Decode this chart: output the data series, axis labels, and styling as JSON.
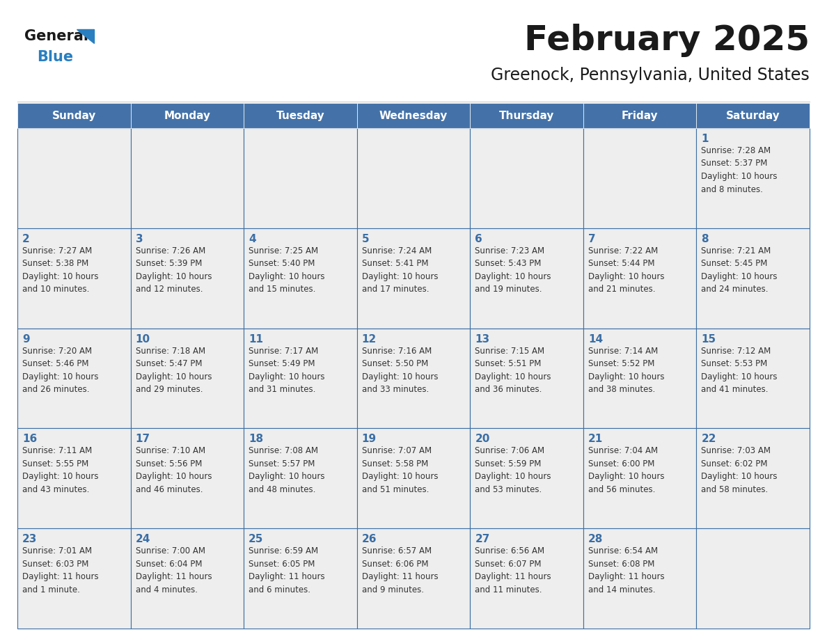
{
  "title": "February 2025",
  "subtitle": "Greenock, Pennsylvania, United States",
  "days_of_week": [
    "Sunday",
    "Monday",
    "Tuesday",
    "Wednesday",
    "Thursday",
    "Friday",
    "Saturday"
  ],
  "header_bg": "#4472a8",
  "header_text": "#ffffff",
  "cell_bg": "#eeeeee",
  "border_color": "#3a6ea5",
  "day_number_color": "#3a6ea5",
  "info_text_color": "#333333",
  "title_color": "#1a1a1a",
  "subtitle_color": "#1a1a1a",
  "logo_general_color": "#1a1a1a",
  "logo_blue_color": "#2a7fc0",
  "weeks": [
    [
      {
        "day": "",
        "info": ""
      },
      {
        "day": "",
        "info": ""
      },
      {
        "day": "",
        "info": ""
      },
      {
        "day": "",
        "info": ""
      },
      {
        "day": "",
        "info": ""
      },
      {
        "day": "",
        "info": ""
      },
      {
        "day": "1",
        "info": "Sunrise: 7:28 AM\nSunset: 5:37 PM\nDaylight: 10 hours\nand 8 minutes."
      }
    ],
    [
      {
        "day": "2",
        "info": "Sunrise: 7:27 AM\nSunset: 5:38 PM\nDaylight: 10 hours\nand 10 minutes."
      },
      {
        "day": "3",
        "info": "Sunrise: 7:26 AM\nSunset: 5:39 PM\nDaylight: 10 hours\nand 12 minutes."
      },
      {
        "day": "4",
        "info": "Sunrise: 7:25 AM\nSunset: 5:40 PM\nDaylight: 10 hours\nand 15 minutes."
      },
      {
        "day": "5",
        "info": "Sunrise: 7:24 AM\nSunset: 5:41 PM\nDaylight: 10 hours\nand 17 minutes."
      },
      {
        "day": "6",
        "info": "Sunrise: 7:23 AM\nSunset: 5:43 PM\nDaylight: 10 hours\nand 19 minutes."
      },
      {
        "day": "7",
        "info": "Sunrise: 7:22 AM\nSunset: 5:44 PM\nDaylight: 10 hours\nand 21 minutes."
      },
      {
        "day": "8",
        "info": "Sunrise: 7:21 AM\nSunset: 5:45 PM\nDaylight: 10 hours\nand 24 minutes."
      }
    ],
    [
      {
        "day": "9",
        "info": "Sunrise: 7:20 AM\nSunset: 5:46 PM\nDaylight: 10 hours\nand 26 minutes."
      },
      {
        "day": "10",
        "info": "Sunrise: 7:18 AM\nSunset: 5:47 PM\nDaylight: 10 hours\nand 29 minutes."
      },
      {
        "day": "11",
        "info": "Sunrise: 7:17 AM\nSunset: 5:49 PM\nDaylight: 10 hours\nand 31 minutes."
      },
      {
        "day": "12",
        "info": "Sunrise: 7:16 AM\nSunset: 5:50 PM\nDaylight: 10 hours\nand 33 minutes."
      },
      {
        "day": "13",
        "info": "Sunrise: 7:15 AM\nSunset: 5:51 PM\nDaylight: 10 hours\nand 36 minutes."
      },
      {
        "day": "14",
        "info": "Sunrise: 7:14 AM\nSunset: 5:52 PM\nDaylight: 10 hours\nand 38 minutes."
      },
      {
        "day": "15",
        "info": "Sunrise: 7:12 AM\nSunset: 5:53 PM\nDaylight: 10 hours\nand 41 minutes."
      }
    ],
    [
      {
        "day": "16",
        "info": "Sunrise: 7:11 AM\nSunset: 5:55 PM\nDaylight: 10 hours\nand 43 minutes."
      },
      {
        "day": "17",
        "info": "Sunrise: 7:10 AM\nSunset: 5:56 PM\nDaylight: 10 hours\nand 46 minutes."
      },
      {
        "day": "18",
        "info": "Sunrise: 7:08 AM\nSunset: 5:57 PM\nDaylight: 10 hours\nand 48 minutes."
      },
      {
        "day": "19",
        "info": "Sunrise: 7:07 AM\nSunset: 5:58 PM\nDaylight: 10 hours\nand 51 minutes."
      },
      {
        "day": "20",
        "info": "Sunrise: 7:06 AM\nSunset: 5:59 PM\nDaylight: 10 hours\nand 53 minutes."
      },
      {
        "day": "21",
        "info": "Sunrise: 7:04 AM\nSunset: 6:00 PM\nDaylight: 10 hours\nand 56 minutes."
      },
      {
        "day": "22",
        "info": "Sunrise: 7:03 AM\nSunset: 6:02 PM\nDaylight: 10 hours\nand 58 minutes."
      }
    ],
    [
      {
        "day": "23",
        "info": "Sunrise: 7:01 AM\nSunset: 6:03 PM\nDaylight: 11 hours\nand 1 minute."
      },
      {
        "day": "24",
        "info": "Sunrise: 7:00 AM\nSunset: 6:04 PM\nDaylight: 11 hours\nand 4 minutes."
      },
      {
        "day": "25",
        "info": "Sunrise: 6:59 AM\nSunset: 6:05 PM\nDaylight: 11 hours\nand 6 minutes."
      },
      {
        "day": "26",
        "info": "Sunrise: 6:57 AM\nSunset: 6:06 PM\nDaylight: 11 hours\nand 9 minutes."
      },
      {
        "day": "27",
        "info": "Sunrise: 6:56 AM\nSunset: 6:07 PM\nDaylight: 11 hours\nand 11 minutes."
      },
      {
        "day": "28",
        "info": "Sunrise: 6:54 AM\nSunset: 6:08 PM\nDaylight: 11 hours\nand 14 minutes."
      },
      {
        "day": "",
        "info": ""
      }
    ]
  ]
}
